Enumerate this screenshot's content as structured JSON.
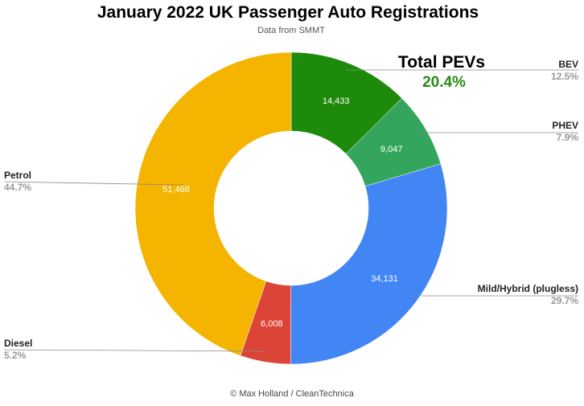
{
  "header": {
    "title": "January 2022 UK Passenger Auto Registrations",
    "subtitle": "Data from SMMT"
  },
  "footer": {
    "credit": "© Max Holland / CleanTechnica"
  },
  "callout": {
    "label": "Total PEVs",
    "value": "20.4%",
    "color": "#2a8a16"
  },
  "chart_data": {
    "type": "pie",
    "donut": true,
    "categories": [
      "BEV",
      "PHEV",
      "Mild/Hybrid (plugless)",
      "Diesel",
      "Petrol"
    ],
    "values": [
      14433,
      9047,
      34131,
      6008,
      51468
    ],
    "value_labels": [
      "14,433",
      "9,047",
      "34,131",
      "6,008",
      "51,468"
    ],
    "percentages": [
      "12.5%",
      "7.9%",
      "29.7%",
      "5.2%",
      "44.7%"
    ],
    "colors": [
      "#1e8a0b",
      "#34a55c",
      "#4285f4",
      "#db4437",
      "#f4b400"
    ],
    "title": "January 2022 UK Passenger Auto Registrations",
    "subtitle": "Data from SMMT",
    "legend": "side-labels"
  }
}
